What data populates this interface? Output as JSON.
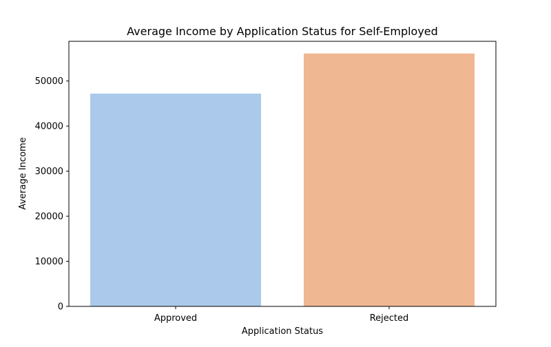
{
  "chart_data": {
    "type": "bar",
    "title": "Average Income by Application Status for Self-Employed",
    "xlabel": "Application Status",
    "ylabel": "Average Income",
    "categories": [
      "Approved",
      "Rejected"
    ],
    "values": [
      47200,
      56100
    ],
    "ylim": [
      0,
      58800
    ],
    "yticks": [
      0,
      10000,
      20000,
      30000,
      40000,
      50000
    ],
    "colors": [
      "#abc9ea",
      "#efb792"
    ],
    "grid": false,
    "legend": "none"
  }
}
